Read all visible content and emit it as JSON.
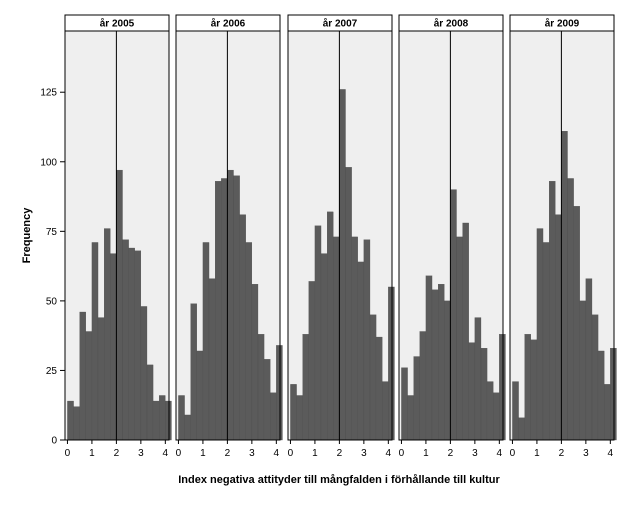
{
  "chart_data": {
    "type": "bar",
    "xlabel": "Index negativa attityder till mångfalden i förhållande till kultur",
    "ylabel": "Frequency",
    "ylim": [
      0,
      147
    ],
    "y_ticks": [
      0,
      25,
      50,
      75,
      100,
      125
    ],
    "x_ticks": [
      0,
      1,
      2,
      3,
      4
    ],
    "xlim": [
      -0.1,
      4.15
    ],
    "bin_width": 0.25,
    "bin_starts": [
      0,
      0.25,
      0.5,
      0.75,
      1,
      1.25,
      1.5,
      1.75,
      2,
      2.25,
      2.5,
      2.75,
      3,
      3.25,
      3.5,
      3.75,
      4
    ],
    "reference_line_x": 2,
    "colors": {
      "bar": "#5b5b5b",
      "panel_bg": "#efefef",
      "bar_stroke": "#4a4a4a"
    },
    "grid": false,
    "panels": [
      {
        "title": "år 2005",
        "values": [
          14,
          12,
          46,
          39,
          71,
          44,
          76,
          67,
          97,
          72,
          69,
          68,
          48,
          27,
          14,
          16,
          14
        ]
      },
      {
        "title": "år 2006",
        "values": [
          16,
          9,
          49,
          32,
          71,
          58,
          93,
          94,
          97,
          95,
          81,
          71,
          56,
          38,
          29,
          17,
          34
        ]
      },
      {
        "title": "år 2007",
        "values": [
          20,
          16,
          38,
          57,
          77,
          67,
          82,
          73,
          126,
          98,
          73,
          64,
          72,
          45,
          37,
          21,
          55
        ]
      },
      {
        "title": "år 2008",
        "values": [
          26,
          16,
          30,
          39,
          59,
          54,
          56,
          50,
          90,
          73,
          78,
          35,
          44,
          33,
          21,
          17,
          38
        ]
      },
      {
        "title": "år 2009",
        "values": [
          21,
          8,
          38,
          36,
          76,
          71,
          93,
          81,
          111,
          94,
          84,
          50,
          58,
          45,
          32,
          20,
          33
        ]
      }
    ]
  }
}
